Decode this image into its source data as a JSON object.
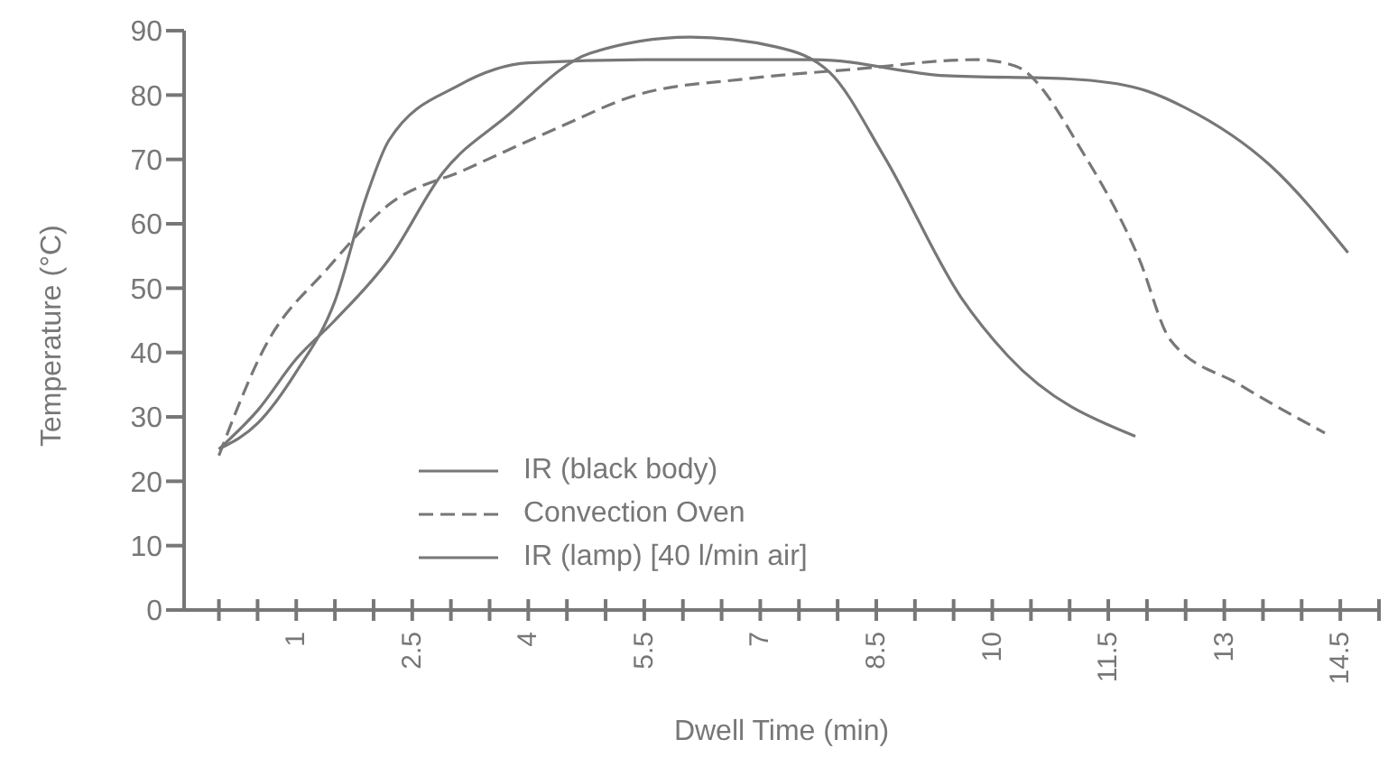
{
  "chart_data": {
    "type": "line",
    "xlabel": "Dwell Time (min)",
    "ylabel": "Temperature (°C)",
    "xlim": [
      -0.45,
      15
    ],
    "ylim": [
      0,
      90
    ],
    "xticks": [
      {
        "value": 0,
        "label": null
      },
      {
        "value": 0.5,
        "label": null
      },
      1,
      {
        "value": 1.5,
        "label": null
      },
      {
        "value": 2,
        "label": null
      },
      2.5,
      {
        "value": 3,
        "label": null
      },
      {
        "value": 3.5,
        "label": null
      },
      4,
      {
        "value": 4.5,
        "label": null
      },
      {
        "value": 5,
        "label": null
      },
      5.5,
      {
        "value": 6,
        "label": null
      },
      {
        "value": 6.5,
        "label": null
      },
      7,
      {
        "value": 7.5,
        "label": null
      },
      {
        "value": 8,
        "label": null
      },
      8.5,
      {
        "value": 9,
        "label": null
      },
      {
        "value": 9.5,
        "label": null
      },
      10,
      {
        "value": 10.5,
        "label": null
      },
      {
        "value": 11,
        "label": null
      },
      11.5,
      {
        "value": 12,
        "label": null
      },
      {
        "value": 12.5,
        "label": null
      },
      13,
      {
        "value": 13.5,
        "label": null
      },
      {
        "value": 14,
        "label": null
      },
      14.5,
      {
        "value": 15,
        "label": null
      }
    ],
    "yticks": [
      0,
      10,
      20,
      30,
      40,
      50,
      60,
      70,
      80,
      90
    ],
    "grid": false,
    "legend": "bottom left",
    "marker": "none",
    "series": [
      {
        "name": "IR (black body)",
        "color": "#777777",
        "line_style": "solid",
        "x": [
          0,
          0.5,
          1,
          1.5,
          2.2,
          2.9,
          3.7,
          4.8,
          6.1,
          7.2,
          7.9,
          8.6,
          9.6,
          10.2,
          11.85
        ],
        "values": [
          25,
          31,
          39,
          45,
          54.5,
          68,
          76.5,
          86.5,
          89,
          87.5,
          83.5,
          70.5,
          48.5,
          39.5,
          27
        ]
      },
      {
        "name": "Convection Oven",
        "color": "#777777",
        "line_style": "dashed",
        "x": [
          0,
          0.6,
          1.4,
          2.2,
          3.2,
          4.4,
          5.4,
          6.8,
          8.2,
          9.8,
          10.3,
          11.2,
          11.9,
          12.3,
          13.2,
          14.3
        ],
        "values": [
          24,
          41,
          53,
          63,
          68.5,
          75,
          80,
          82.5,
          84,
          85.5,
          84.5,
          70.5,
          54.5,
          42,
          35,
          27.5
        ]
      },
      {
        "name": "IR (lamp) [40 l/min air]",
        "color": "#777777",
        "line_style": "solid",
        "x": [
          0,
          0.5,
          1,
          1.5,
          1.9,
          2.2,
          3.1,
          4,
          5.5,
          7.7,
          9.4,
          11,
          11.9,
          12.5,
          13.6,
          14.6
        ],
        "values": [
          25,
          29,
          37,
          48,
          64,
          73,
          81.5,
          85,
          85.5,
          85.5,
          83,
          82.5,
          81,
          78,
          69,
          55.5
        ]
      }
    ]
  }
}
